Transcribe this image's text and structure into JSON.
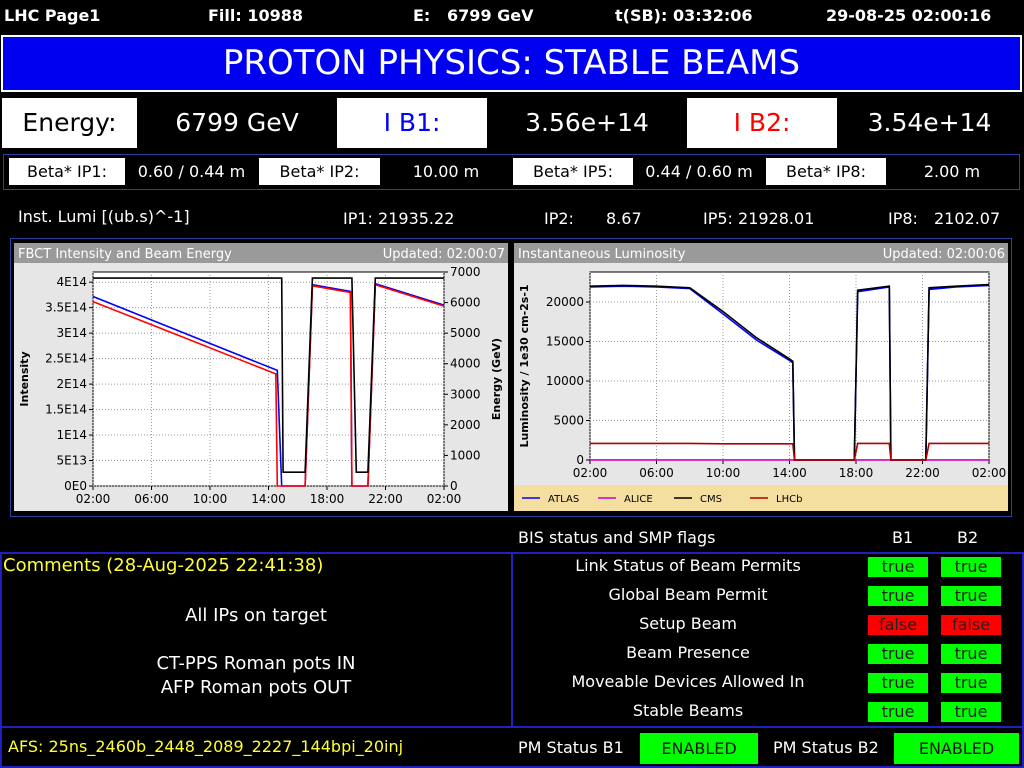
{
  "header": {
    "page": "LHC Page1",
    "fill": "Fill: 10988",
    "energy": "E:   6799 GeV",
    "t_sb": "t(SB): 03:32:06",
    "timestamp": "29-08-25 02:00:16"
  },
  "banner": "PROTON PHYSICS: STABLE BEAMS",
  "beam": {
    "energy_label": "Energy:",
    "energy": "6799 GeV",
    "ib1_label": "I B1:",
    "ib1": "3.56e+14",
    "ib2_label": "I B2:",
    "ib2": "3.54e+14"
  },
  "beta": [
    {
      "label": "Beta* IP1:",
      "value": "0.60 / 0.44 m"
    },
    {
      "label": "Beta* IP2:",
      "value": "10.00 m"
    },
    {
      "label": "Beta* IP5:",
      "value": "0.44 / 0.60 m"
    },
    {
      "label": "Beta* IP8:",
      "value": "2.00 m"
    }
  ],
  "lumi": {
    "label": "Inst. Lumi [(ub.s)^-1]",
    "ip1": "IP1: 21935.22",
    "ip2_label": "IP2:",
    "ip2": "8.67",
    "ip5": "IP5: 21928.01",
    "ip8_label": "IP8:",
    "ip8": "2102.07"
  },
  "chart_data": [
    {
      "type": "line",
      "title": "FBCT Intensity and Beam Energy",
      "subtitle": "Updated: 02:00:07",
      "ylabel": "Intensity",
      "y2label": "Energy (GeV)",
      "grid": true,
      "x": [
        2,
        14.5,
        14.6,
        14.9,
        15.0,
        16.5,
        17.0,
        19.6,
        19.7,
        20.0,
        20.8,
        21.3,
        26
      ],
      "xlim": [
        2,
        26
      ],
      "xticks": [
        {
          "value": 2,
          "label": "02:00"
        },
        {
          "value": 6,
          "label": "06:00"
        },
        {
          "value": 10,
          "label": "10:00"
        },
        {
          "value": 14,
          "label": "14:00"
        },
        {
          "value": 18,
          "label": "18:00"
        },
        {
          "value": 22,
          "label": "22:00"
        },
        {
          "value": 26,
          "label": "02:00"
        }
      ],
      "ylim": [
        0,
        420000000000000
      ],
      "yticks": [
        {
          "value": 0,
          "label": "0E0"
        },
        {
          "value": 50000000000000,
          "label": "5E13"
        },
        {
          "value": 100000000000000,
          "label": "1E14"
        },
        {
          "value": 150000000000000,
          "label": "1.5E14"
        },
        {
          "value": 200000000000000,
          "label": "2E14"
        },
        {
          "value": 250000000000000,
          "label": "2.5E14"
        },
        {
          "value": 300000000000000,
          "label": "3E14"
        },
        {
          "value": 350000000000000,
          "label": "3.5E14"
        },
        {
          "value": 400000000000000,
          "label": "4E14"
        }
      ],
      "y2lim": [
        0,
        7000
      ],
      "y2ticks": [
        0,
        1000,
        2000,
        3000,
        4000,
        5000,
        6000,
        7000
      ],
      "series": [
        {
          "color": "#0000ff",
          "values": [
            372000000000000,
            228000000000000,
            227000000000000,
            0,
            0,
            0,
            395000000000000,
            382000000000000,
            0,
            0,
            0,
            397000000000000,
            355000000000000
          ]
        },
        {
          "color": "#ff0000",
          "values": [
            362000000000000,
            220000000000000,
            0,
            0,
            0,
            0,
            393000000000000,
            380000000000000,
            0,
            0,
            0,
            395000000000000,
            353000000000000
          ]
        },
        {
          "color": "#000000",
          "axis": "y2",
          "values": [
            6799,
            6799,
            6799,
            6799,
            450,
            450,
            6799,
            6799,
            6799,
            450,
            450,
            6799,
            6799
          ]
        }
      ]
    },
    {
      "type": "line",
      "title": "Instantaneous Luminosity",
      "subtitle": "Updated: 02:00:06",
      "ylabel": "Luminosity / 1e30 cm-2s-1",
      "grid": true,
      "legend": "bottom",
      "x": [
        2,
        4,
        6,
        8,
        10,
        12,
        14,
        14.2,
        14.3,
        17.9,
        18.1,
        20,
        20.1,
        22.2,
        22.4,
        24,
        26
      ],
      "xlim": [
        2,
        26
      ],
      "xticks": [
        {
          "value": 2,
          "label": "02:00"
        },
        {
          "value": 6,
          "label": "06:00"
        },
        {
          "value": 10,
          "label": "10:00"
        },
        {
          "value": 14,
          "label": "14:00"
        },
        {
          "value": 18,
          "label": "18:00"
        },
        {
          "value": 22,
          "label": "22:00"
        },
        {
          "value": 26,
          "label": "02:00"
        }
      ],
      "ylim": [
        0,
        23800
      ],
      "yticks": [
        0,
        5000,
        10000,
        15000,
        20000
      ],
      "series": [
        {
          "name": "ATLAS",
          "color": "#0000ff",
          "values": [
            21900,
            22000,
            21900,
            21700,
            18500,
            15200,
            12600,
            12300,
            0,
            0,
            21300,
            21900,
            0,
            0,
            21600,
            21900,
            22100
          ]
        },
        {
          "name": "ALICE",
          "color": "#cc00cc",
          "values": [
            9,
            9,
            9,
            9,
            9,
            9,
            9,
            9,
            0,
            0,
            9,
            9,
            0,
            0,
            9,
            9,
            9
          ]
        },
        {
          "name": "CMS",
          "color": "#000000",
          "values": [
            22000,
            22100,
            22000,
            21800,
            18800,
            15500,
            12800,
            12500,
            0,
            0,
            21500,
            22000,
            0,
            0,
            21800,
            22000,
            22200
          ]
        },
        {
          "name": "LHCb",
          "color": "#b00000",
          "values": [
            2100,
            2100,
            2100,
            2100,
            2050,
            2050,
            2050,
            2050,
            0,
            0,
            2100,
            2100,
            0,
            0,
            2100,
            2100,
            2100
          ]
        }
      ]
    }
  ],
  "flags": {
    "title": "BIS status and SMP flags",
    "b1": "B1",
    "b2": "B2",
    "rows": [
      {
        "name": "Link Status of Beam Permits",
        "b1": "true",
        "b2": "true",
        "b1_color": "#00ff00",
        "b2_color": "#00ff00"
      },
      {
        "name": "Global Beam Permit",
        "b1": "true",
        "b2": "true",
        "b1_color": "#00ff00",
        "b2_color": "#00ff00"
      },
      {
        "name": "Setup Beam",
        "b1": "false",
        "b2": "false",
        "b1_color": "#ff0000",
        "b2_color": "#ff0000"
      },
      {
        "name": "Beam Presence",
        "b1": "true",
        "b2": "true",
        "b1_color": "#00ff00",
        "b2_color": "#00ff00"
      },
      {
        "name": "Moveable Devices Allowed In",
        "b1": "true",
        "b2": "true",
        "b1_color": "#00ff00",
        "b2_color": "#00ff00"
      },
      {
        "name": "Stable Beams",
        "b1": "true",
        "b2": "true",
        "b1_color": "#00ff00",
        "b2_color": "#00ff00"
      }
    ]
  },
  "comments": {
    "title": "Comments (28-Aug-2025 22:41:38)",
    "lines": [
      "All IPs on target",
      "CT-PPS Roman pots IN",
      "AFP Roman pots OUT"
    ]
  },
  "footer": {
    "afs": "AFS: 25ns_2460b_2448_2089_2227_144bpi_20inj",
    "pm_b1_label": "PM Status B1",
    "pm_b1": "ENABLED",
    "pm_b2_label": "PM Status B2",
    "pm_b2": "ENABLED"
  }
}
